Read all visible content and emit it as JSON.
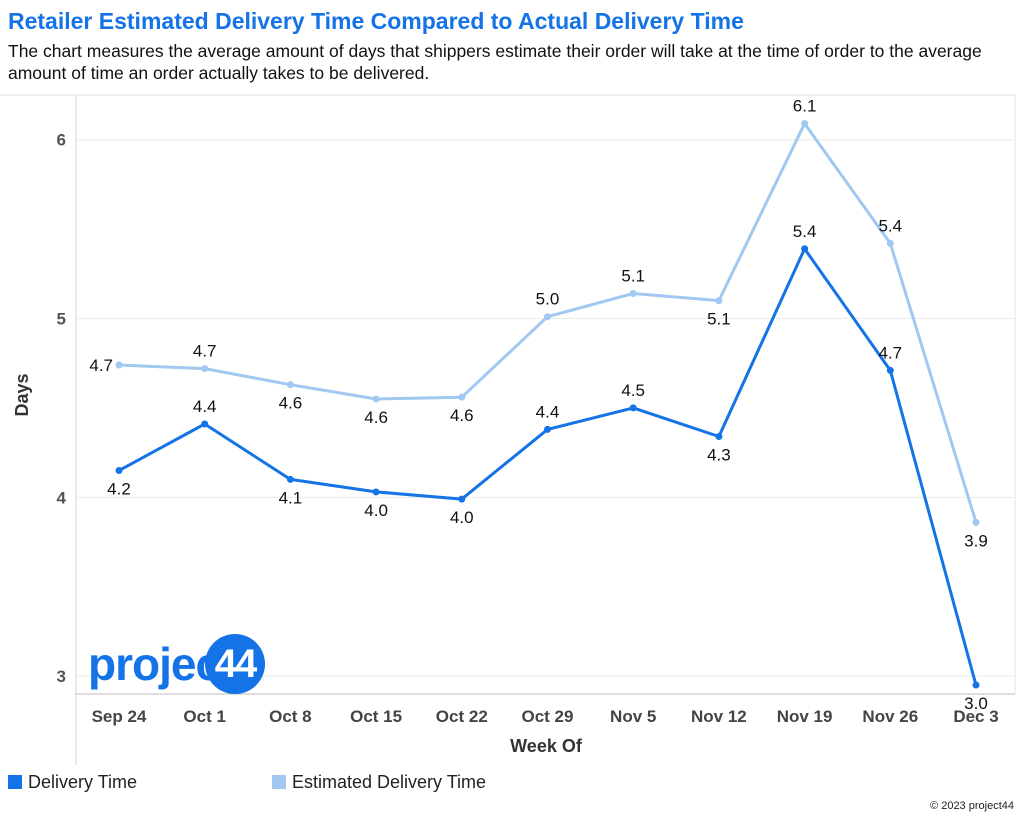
{
  "header": {
    "title": "Retailer Estimated Delivery Time Compared to Actual Delivery Time",
    "subtitle": "The chart measures the average amount of days that shippers estimate their order will take at the time of order to the average amount of time an order actually takes to be delivered."
  },
  "logo": {
    "word": "project",
    "badge": "44"
  },
  "footer": {
    "copyright": "© 2023 project44"
  },
  "chart_data": {
    "type": "line",
    "xlabel": "Week Of",
    "ylabel": "Days",
    "ylim": [
      2.9,
      6.25
    ],
    "yticks": [
      3,
      4,
      5,
      6
    ],
    "grid": true,
    "legend_position": "bottom-left",
    "categories": [
      "Sep 24",
      "Oct 1",
      "Oct 8",
      "Oct 15",
      "Oct 22",
      "Oct 29",
      "Nov 5",
      "Nov 12",
      "Nov 19",
      "Nov 26",
      "Dec 3"
    ],
    "series": [
      {
        "name": "Delivery Time",
        "color": "#1473E6",
        "values": [
          4.15,
          4.41,
          4.1,
          4.03,
          3.99,
          4.38,
          4.5,
          4.34,
          5.39,
          4.71,
          2.95
        ],
        "labels": [
          "4.2",
          "4.4",
          "4.1",
          "4.0",
          "4.0",
          "4.4",
          "4.5",
          "4.3",
          "5.4",
          "4.7",
          "3.0"
        ]
      },
      {
        "name": "Estimated Delivery Time",
        "color": "#A0C8F0",
        "values": [
          4.74,
          4.72,
          4.63,
          4.55,
          4.56,
          5.01,
          5.14,
          5.1,
          6.09,
          5.42,
          3.86
        ],
        "labels": [
          "4.7",
          "4.7",
          "4.6",
          "4.6",
          "4.6",
          "5.0",
          "5.1",
          "5.1",
          "6.1",
          "5.4",
          "3.9"
        ]
      }
    ]
  }
}
